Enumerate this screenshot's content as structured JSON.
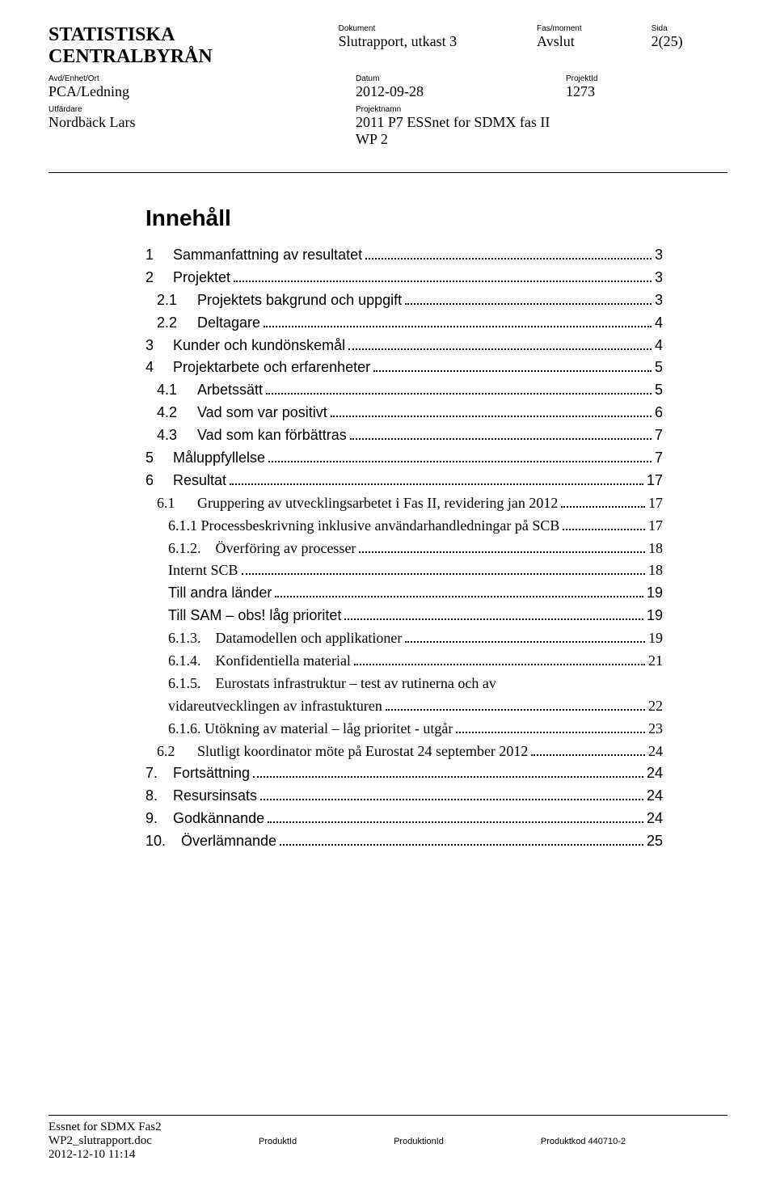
{
  "header": {
    "org": "STATISTISKA CENTRALBYRÅN",
    "dokument_label": "Dokument",
    "dokument": "Slutrapport, utkast 3",
    "fas_label": "Fas/moment",
    "fas": "Avslut",
    "sida_label": "Sida",
    "sida": "2(25)",
    "avd_label": "Avd/Enhet/Ort",
    "avd": "PCA/Ledning",
    "datum_label": "Datum",
    "datum": "2012-09-28",
    "projektid_label": "ProjektId",
    "projektid": "1273",
    "utfardare_label": "Utfärdare",
    "utfardare": "Nordbäck Lars",
    "projektnamn_label": "Projektnamn",
    "projektnamn1": "2011 P7 ESSnet for SDMX fas II",
    "projektnamn2": "WP 2"
  },
  "toc": {
    "title": "Innehåll",
    "items": [
      {
        "num": "1",
        "text": "Sammanfattning av resultatet",
        "page": "3",
        "indent": 0,
        "arial": true
      },
      {
        "num": "2",
        "text": "Projektet",
        "page": "3",
        "indent": 0,
        "arial": true
      },
      {
        "num": "2.1",
        "text": "Projektets bakgrund och uppgift",
        "page": "3",
        "indent": 1,
        "arial": true
      },
      {
        "num": "2.2",
        "text": "Deltagare",
        "page": "4",
        "indent": 1,
        "arial": true
      },
      {
        "num": "3",
        "text": "Kunder och kundönskemål",
        "page": "4",
        "indent": 0,
        "arial": true
      },
      {
        "num": "4",
        "text": "Projektarbete och erfarenheter",
        "page": "5",
        "indent": 0,
        "arial": true
      },
      {
        "num": "4.1",
        "text": "Arbetssätt",
        "page": "5",
        "indent": 1,
        "arial": true
      },
      {
        "num": "4.2",
        "text": "Vad som var positivt",
        "page": "6",
        "indent": 1,
        "arial": true
      },
      {
        "num": "4.3",
        "text": "Vad som kan förbättras",
        "page": "7",
        "indent": 1,
        "arial": true
      },
      {
        "num": "5",
        "text": "Måluppfyllelse",
        "page": "7",
        "indent": 0,
        "arial": true
      },
      {
        "num": "6",
        "text": "Resultat",
        "page": "17",
        "indent": 0,
        "arial": true
      },
      {
        "num": "6.1",
        "text": "Gruppering av utvecklingsarbetet i Fas II, revidering jan 2012",
        "page": "17",
        "indent": 1,
        "arial": false
      },
      {
        "num": "",
        "text": "6.1.1 Processbeskrivning inklusive användarhandledningar på SCB",
        "page": "17",
        "indent": 2,
        "arial": false
      },
      {
        "num": "",
        "text": "6.1.2.    Överföring av processer",
        "page": "18",
        "indent": 2,
        "arial": false
      },
      {
        "num": "",
        "text": "Internt SCB",
        "page": "18",
        "indent": 3,
        "arial": false
      },
      {
        "num": "",
        "text": "Till andra länder",
        "page": "19",
        "indent": 4,
        "arial": true
      },
      {
        "num": "",
        "text": "Till SAM – obs! låg prioritet",
        "page": "19",
        "indent": 4,
        "arial": true
      },
      {
        "num": "",
        "text": "6.1.3.    Datamodellen och applikationer",
        "page": "19",
        "indent": 2,
        "arial": false
      },
      {
        "num": "",
        "text": "6.1.4.    Konfidentiella material",
        "page": "21",
        "indent": 2,
        "arial": false
      },
      {
        "num": "",
        "text": "6.1.5.    Eurostats infrastruktur – test av rutinerna och av",
        "page": "",
        "indent": 2,
        "arial": false,
        "nodots": true
      },
      {
        "num": "",
        "text": "vidareutvecklingen av infrastukturen",
        "page": "22",
        "indent": 2,
        "arial": false
      },
      {
        "num": "",
        "text": "6.1.6. Utökning av material – låg prioritet - utgår",
        "page": "23",
        "indent": 2,
        "arial": false
      },
      {
        "num": "6.2",
        "text": "Slutligt koordinator möte på Eurostat 24 september 2012",
        "page": "24",
        "indent": 1,
        "arial": false
      },
      {
        "num": "7.",
        "text": "Fortsättning",
        "page": "24",
        "indent": 0,
        "arial": true
      },
      {
        "num": "8.",
        "text": "Resursinsats",
        "page": "24",
        "indent": 0,
        "arial": true
      },
      {
        "num": "9.",
        "text": "Godkännande",
        "page": "24",
        "indent": 0,
        "arial": true
      },
      {
        "num": "10.",
        "text": "  Överlämnande",
        "page": "25",
        "indent": 0,
        "arial": true
      }
    ]
  },
  "footer": {
    "line1": "Essnet for SDMX Fas2",
    "line2": "WP2_slutrapport.doc",
    "line3": "2012-12-10 11:14",
    "produktid": "ProduktId",
    "produktionid": "ProduktionId",
    "produktkod": "Produktkod 440710-2"
  }
}
